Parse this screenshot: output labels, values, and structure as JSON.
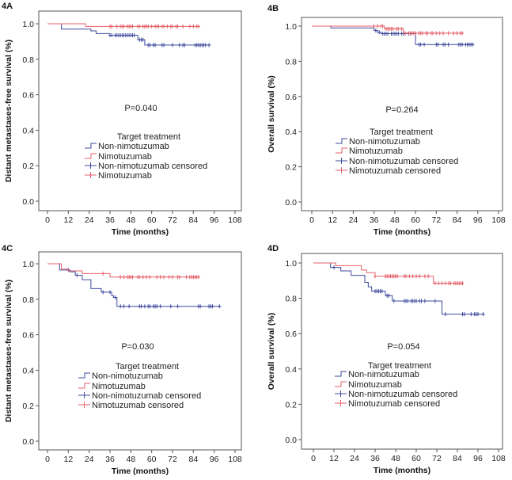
{
  "colors": {
    "non_nimotuzumab": "#3e4b9e",
    "nimotuzumab": "#e5606a",
    "frame": "#555555"
  },
  "chart_data": [
    {
      "type": "line",
      "panel_label": "4A",
      "xlabel": "Time (months)",
      "ylabel": "Distant metastases-free survival (%)",
      "xlim": [
        0,
        108
      ],
      "ylim": [
        0,
        1
      ],
      "xticks": [
        "0",
        "12",
        "24",
        "36",
        "48",
        "60",
        "72",
        "84",
        "96",
        "108"
      ],
      "yticks": [
        "0.0",
        "0.2",
        "0.4",
        "0.6",
        "0.8",
        "1.0"
      ],
      "annotation": "P=0.040",
      "legend_title": "Target treatment",
      "legend": [
        "Non-nimotuzumab",
        "Nimotuzumab",
        "Non-nimotuzumab censored",
        "Nimotuzumab"
      ],
      "series": [
        {
          "name": "Non-nimotuzumab",
          "steps": [
            [
              0,
              1
            ],
            [
              8,
              0.97
            ],
            [
              25,
              0.96
            ],
            [
              28,
              0.945
            ],
            [
              36,
              0.935
            ],
            [
              52,
              0.91
            ],
            [
              56,
              0.88
            ]
          ],
          "end": 94,
          "censored": [
            36,
            37,
            39,
            40,
            41,
            42,
            43,
            44,
            45,
            46,
            47,
            48,
            49,
            50,
            53,
            54,
            55,
            58,
            59,
            61,
            62,
            66,
            67,
            72,
            76,
            78,
            79,
            85,
            86,
            87,
            88,
            89,
            90,
            91,
            93
          ]
        },
        {
          "name": "Nimotuzumab",
          "steps": [
            [
              0,
              1
            ],
            [
              22,
              0.985
            ]
          ],
          "end": 87,
          "censored": [
            36,
            37,
            40,
            42,
            43,
            44,
            46,
            47,
            48,
            49,
            52,
            53,
            55,
            56,
            57,
            58,
            60,
            62,
            63,
            64,
            66,
            67,
            69,
            71,
            72,
            74,
            75,
            78,
            82,
            84,
            86,
            87
          ]
        }
      ]
    },
    {
      "type": "line",
      "panel_label": "4B",
      "xlabel": "Time (months)",
      "ylabel": "Overall survival (%)",
      "xlim": [
        0,
        108
      ],
      "ylim": [
        0,
        1
      ],
      "xticks": [
        "0",
        "12",
        "24",
        "36",
        "48",
        "60",
        "72",
        "84",
        "96",
        "108"
      ],
      "yticks": [
        "0.0",
        "0.2",
        "0.4",
        "0.6",
        "0.8",
        "1.0"
      ],
      "annotation": "P=0.264",
      "legend_title": "Target treatment",
      "legend": [
        "Non-nimotuzumab",
        "Nimotuzumab",
        "Non-nimotuzumab censored",
        "Nimotuzumab censored"
      ],
      "series": [
        {
          "name": "Non-nimotuzumab",
          "steps": [
            [
              0,
              1
            ],
            [
              11,
              0.99
            ],
            [
              36,
              0.975
            ],
            [
              38,
              0.965
            ],
            [
              40,
              0.957
            ],
            [
              60,
              0.895
            ]
          ],
          "end": 94,
          "censored": [
            37,
            39,
            41,
            42,
            43,
            44,
            46,
            47,
            48,
            49,
            50,
            52,
            53,
            54,
            56,
            57,
            62,
            63,
            65,
            72,
            73,
            76,
            77,
            79,
            85,
            86,
            87,
            89,
            90,
            91,
            92,
            93
          ]
        },
        {
          "name": "Nimotuzumab",
          "steps": [
            [
              0,
              1
            ],
            [
              42,
              0.985
            ],
            [
              53,
              0.96
            ]
          ],
          "end": 87,
          "censored": [
            36,
            38,
            40,
            41,
            43,
            44,
            45,
            46,
            47,
            49,
            50,
            52,
            54,
            56,
            57,
            58,
            59,
            60,
            62,
            63,
            64,
            66,
            67,
            69,
            70,
            72,
            74,
            76,
            79,
            82,
            84,
            86,
            87
          ]
        }
      ]
    },
    {
      "type": "line",
      "panel_label": "4C",
      "xlabel": "Time (months)",
      "ylabel": "Distant metastases-free survival (%)",
      "xlim": [
        0,
        108
      ],
      "ylim": [
        0,
        1
      ],
      "xticks": [
        "0",
        "12",
        "24",
        "36",
        "48",
        "60",
        "72",
        "84",
        "96",
        "108"
      ],
      "yticks": [
        "0.0",
        "0.2",
        "0.4",
        "0.6",
        "0.8",
        "1.0"
      ],
      "annotation": "P=0.030",
      "legend_title": "Target treatment",
      "legend": [
        "Non-nimotuzumab",
        "Nimotuzumab",
        "Non-nimotuzumab censored",
        "Nimotuzumab censored"
      ],
      "series": [
        {
          "name": "Non-nimotuzumab",
          "steps": [
            [
              0,
              1
            ],
            [
              7,
              0.965
            ],
            [
              13,
              0.955
            ],
            [
              16,
              0.935
            ],
            [
              20,
              0.91
            ],
            [
              25,
              0.86
            ],
            [
              31,
              0.84
            ],
            [
              37,
              0.82
            ],
            [
              38,
              0.81
            ],
            [
              40,
              0.76
            ]
          ],
          "end": 100,
          "censored": [
            12,
            17,
            32,
            36,
            39,
            42,
            44,
            47,
            53,
            54,
            56,
            58,
            59,
            61,
            62,
            63,
            65,
            71,
            75,
            87,
            88,
            93,
            94,
            95,
            99
          ]
        },
        {
          "name": "Nimotuzumab",
          "steps": [
            [
              0,
              1
            ],
            [
              8,
              0.97
            ],
            [
              12,
              0.96
            ],
            [
              20,
              0.945
            ],
            [
              36,
              0.925
            ]
          ],
          "end": 87,
          "censored": [
            32,
            42,
            44,
            46,
            47,
            48,
            49,
            52,
            53,
            55,
            57,
            59,
            63,
            65,
            67,
            70,
            72,
            75,
            76,
            80,
            82,
            83,
            84,
            85,
            86,
            87
          ]
        }
      ]
    },
    {
      "type": "line",
      "panel_label": "4D",
      "xlabel": "Time (months)",
      "ylabel": "Overall survival (%)",
      "xlim": [
        0,
        108
      ],
      "ylim": [
        0,
        1
      ],
      "xticks": [
        "0",
        "12",
        "24",
        "36",
        "48",
        "60",
        "72",
        "84",
        "96",
        "108"
      ],
      "yticks": [
        "0.0",
        "0.2",
        "0.4",
        "0.6",
        "0.8",
        "1.0"
      ],
      "annotation": "P=0.054",
      "legend_title": "Target treatment",
      "legend": [
        "Non-nimotuzumab",
        "Nimotuzumab",
        "Non-nimotuzumab censored",
        "Nimotuzumab censored"
      ],
      "series": [
        {
          "name": "Non-nimotuzumab",
          "steps": [
            [
              0,
              1
            ],
            [
              10,
              0.975
            ],
            [
              16,
              0.955
            ],
            [
              22,
              0.93
            ],
            [
              30,
              0.89
            ],
            [
              32,
              0.865
            ],
            [
              34,
              0.84
            ],
            [
              42,
              0.815
            ],
            [
              46,
              0.785
            ],
            [
              75,
              0.71
            ]
          ],
          "end": 100,
          "censored": [
            12,
            36,
            37,
            38,
            39,
            40,
            43,
            44,
            47,
            53,
            54,
            55,
            57,
            58,
            59,
            60,
            62,
            63,
            65,
            71,
            77,
            87,
            88,
            92,
            94,
            95,
            96,
            99
          ]
        },
        {
          "name": "Nimotuzumab",
          "steps": [
            [
              0,
              1
            ],
            [
              13,
              0.985
            ],
            [
              28,
              0.96
            ],
            [
              31,
              0.945
            ],
            [
              36,
              0.925
            ],
            [
              70,
              0.885
            ]
          ],
          "end": 87,
          "censored": [
            36,
            42,
            43,
            44,
            45,
            46,
            47,
            48,
            49,
            53,
            54,
            56,
            58,
            60,
            62,
            65,
            67,
            71,
            73,
            75,
            77,
            79,
            80,
            82,
            83,
            84,
            85,
            86,
            87
          ]
        }
      ]
    }
  ]
}
